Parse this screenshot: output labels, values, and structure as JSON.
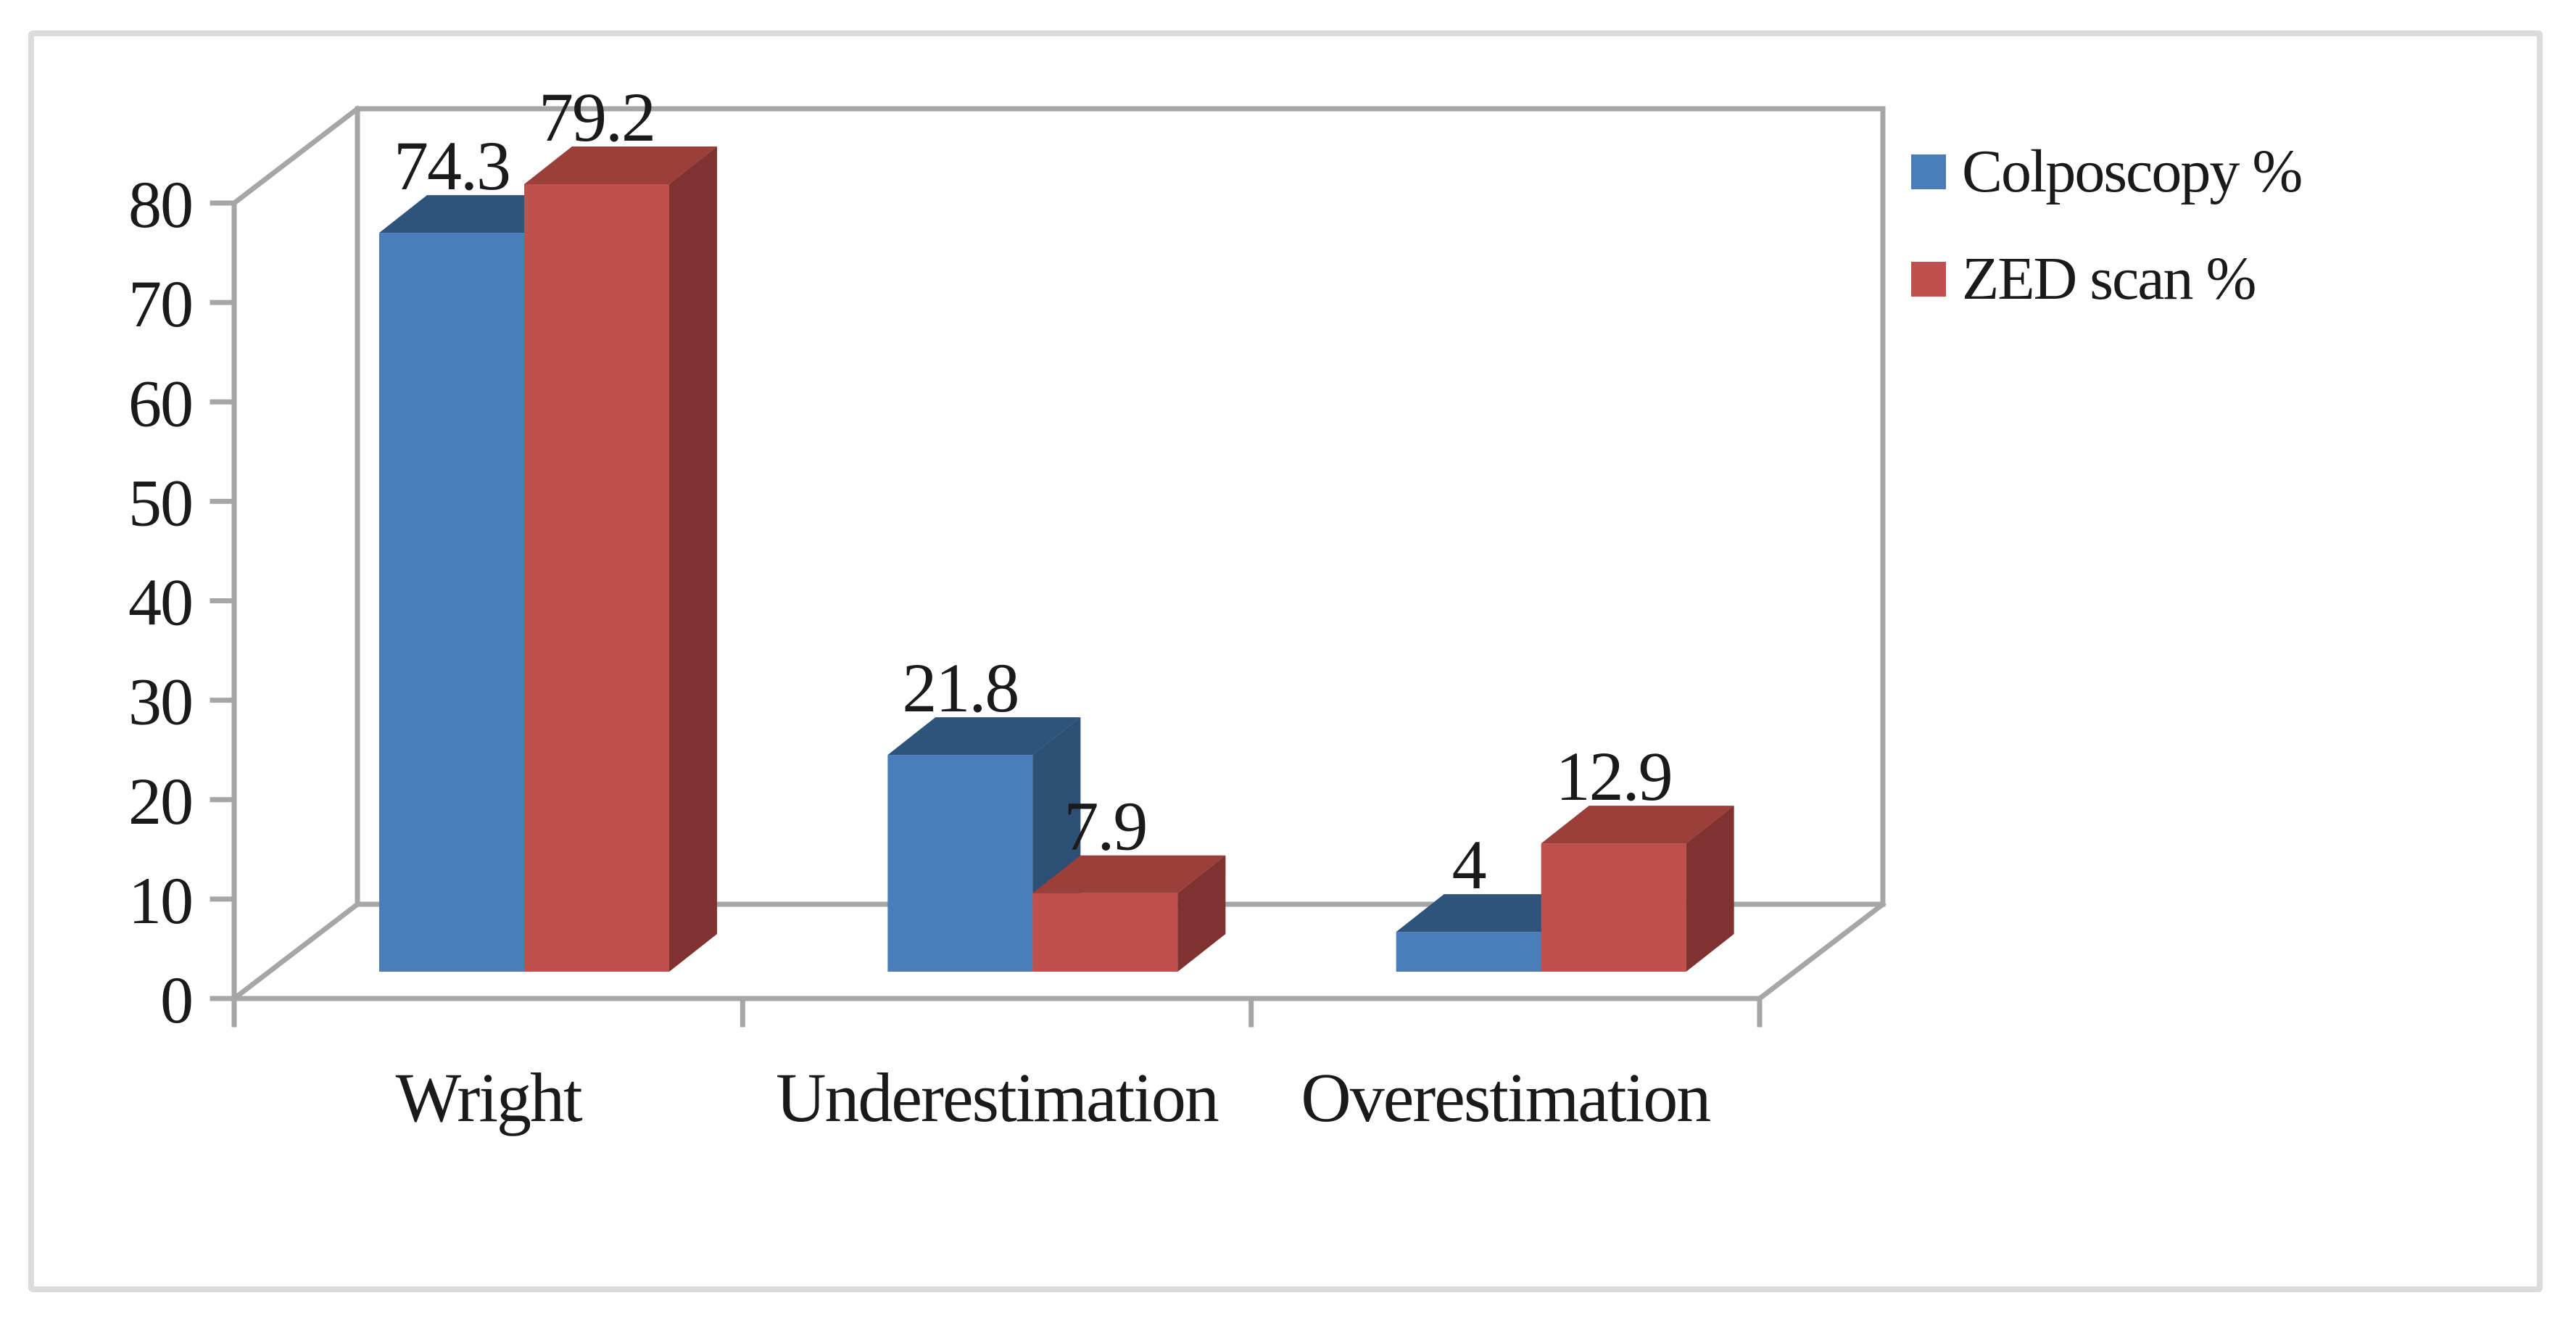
{
  "frame": {
    "background": "#ffffff",
    "border_color": "#dbdbdb"
  },
  "chart_data": {
    "type": "bar",
    "subtype": "3d-clustered-column",
    "title": "",
    "xlabel": "",
    "ylabel": "",
    "categories": [
      "Wright",
      "Underestimation",
      "Overestimation"
    ],
    "series": [
      {
        "name": "Colposcopy %",
        "values": [
          74.3,
          21.8,
          4
        ],
        "data_labels": [
          "74.3",
          "21.8",
          "4"
        ],
        "color_front": "#4a7ebb",
        "color_top": "#2f547c",
        "color_side": "#2e4f75"
      },
      {
        "name": "ZED scan %",
        "values": [
          79.2,
          7.9,
          12.9
        ],
        "data_labels": [
          "79.2",
          "7.9",
          "12.9"
        ],
        "color_front": "#c0504d",
        "color_top": "#9a3f3a",
        "color_side": "#7f322f"
      }
    ],
    "ylim": [
      0,
      80
    ],
    "ytick_interval": 10,
    "ytick_labels": [
      "0",
      "10",
      "20",
      "30",
      "40",
      "50",
      "60",
      "70",
      "80"
    ],
    "grid": "off",
    "legend_position": "right",
    "axis_line_color": "#a6a6a6",
    "text_color": "#1a1a1a"
  }
}
